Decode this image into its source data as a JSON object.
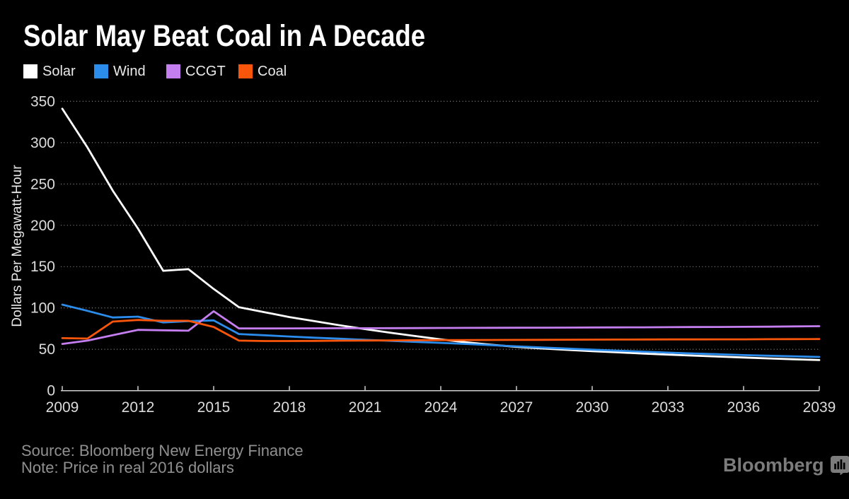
{
  "title": "Solar May Beat Coal in A Decade",
  "legend": [
    {
      "label": "Solar",
      "color": "#ffffff"
    },
    {
      "label": "Wind",
      "color": "#2b8ceb"
    },
    {
      "label": "CCGT",
      "color": "#c57ef0"
    },
    {
      "label": "Coal",
      "color": "#f9560c"
    }
  ],
  "footer": {
    "source": "Source: Bloomberg New Energy Finance",
    "note": "Note: Price in real 2016 dollars",
    "brand": "Bloomberg"
  },
  "colors": {
    "background": "#000000",
    "grid": "#9a9a9a",
    "axis": "#cfcfcf",
    "tick_text": "#dcdcdc",
    "axis_title_text": "#e8e8e8"
  },
  "chart_data": {
    "type": "line",
    "title": "Solar May Beat Coal in A Decade",
    "xlabel": "",
    "ylabel": "Dollars Per Megawatt-Hour",
    "ylim": [
      0,
      350
    ],
    "yticks": [
      0,
      50,
      100,
      150,
      200,
      250,
      300,
      350
    ],
    "xticks": [
      2009,
      2012,
      2015,
      2018,
      2021,
      2024,
      2027,
      2030,
      2033,
      2036,
      2039
    ],
    "grid": "dotted-horizontal",
    "legend_position": "top",
    "x": [
      2009,
      2010,
      2011,
      2012,
      2013,
      2014,
      2015,
      2016,
      2017,
      2018,
      2019,
      2020,
      2021,
      2022,
      2023,
      2024,
      2025,
      2026,
      2027,
      2028,
      2029,
      2030,
      2031,
      2032,
      2033,
      2034,
      2035,
      2036,
      2037,
      2038,
      2039
    ],
    "series": [
      {
        "name": "Solar",
        "color": "#ffffff",
        "values": [
          341,
          294,
          242,
          196,
          145,
          147,
          123,
          101,
          95,
          89,
          84,
          79,
          74.5,
          70,
          66,
          62,
          58.5,
          55.5,
          53,
          51,
          49.3,
          47.8,
          46.3,
          44.9,
          43.6,
          42.4,
          41.2,
          40.1,
          39,
          38,
          37
        ]
      },
      {
        "name": "Wind",
        "color": "#2b8ceb",
        "values": [
          104,
          96.5,
          88.5,
          89.5,
          82.5,
          84,
          85,
          68.5,
          67,
          65.5,
          64,
          62.8,
          61.5,
          60.3,
          59,
          57.8,
          56.5,
          55,
          53.6,
          52.2,
          50.9,
          49.6,
          48.4,
          47.2,
          46,
          45,
          44,
          43,
          42.2,
          41.5,
          40.8
        ]
      },
      {
        "name": "CCGT",
        "color": "#c57ef0",
        "values": [
          56.5,
          60.5,
          67,
          73.5,
          73,
          72.5,
          96,
          75.2,
          75.2,
          75.3,
          75.4,
          75.5,
          75.5,
          75.6,
          75.7,
          75.8,
          75.9,
          76,
          76.1,
          76.2,
          76.3,
          76.4,
          76.5,
          76.6,
          76.8,
          76.9,
          77,
          77.2,
          77.4,
          77.7,
          78
        ]
      },
      {
        "name": "Coal",
        "color": "#f9560c",
        "values": [
          63.5,
          63,
          83.5,
          85.5,
          84.5,
          84.5,
          77,
          60.5,
          60,
          60,
          60.2,
          60.4,
          60.6,
          60.8,
          61,
          61.1,
          61.2,
          61.3,
          61.4,
          61.5,
          61.6,
          61.7,
          61.8,
          61.9,
          62,
          62,
          62.1,
          62.1,
          62.2,
          62.3,
          62.4
        ]
      }
    ]
  }
}
